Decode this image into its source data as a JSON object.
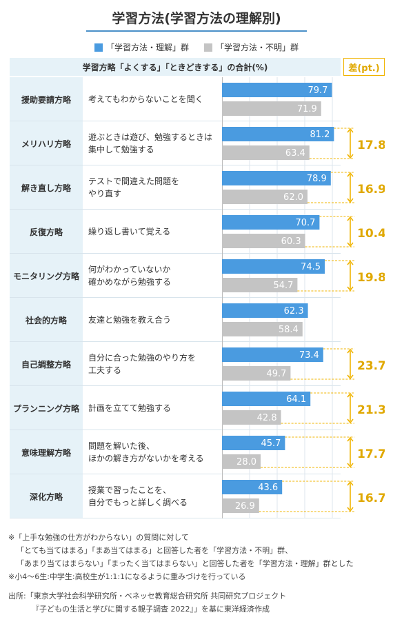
{
  "chart_data": {
    "type": "bar",
    "title": "学習方法(学習方法の理解別)",
    "subtitle": "学習方略「よくする」「ときどきする」の合計(%)",
    "diff_header": "差(pt.)",
    "series": [
      {
        "name": "「学習方法・理解」群",
        "color": "#4a9be0",
        "values": [
          79.7,
          81.2,
          78.9,
          70.7,
          74.5,
          62.3,
          73.4,
          64.1,
          45.7,
          43.6
        ]
      },
      {
        "name": "「学習方法・不明」群",
        "color": "#c4c4c4",
        "values": [
          71.9,
          63.4,
          62.0,
          60.3,
          54.7,
          58.4,
          49.7,
          42.8,
          28.0,
          26.9
        ]
      }
    ],
    "categories": [
      "援助要請方略",
      "メリハリ方略",
      "解き直し方略",
      "反復方略",
      "モニタリング方略",
      "社会的方略",
      "自己調整方略",
      "プランニング方略",
      "意味理解方略",
      "深化方略"
    ],
    "descriptions": [
      [
        "考えてもわからないことを聞く"
      ],
      [
        "遊ぶときは遊び、勉強するときは",
        "集中して勉強する"
      ],
      [
        "テストで間違えた問題を",
        "やり直す"
      ],
      [
        "繰り返し書いて覚える"
      ],
      [
        "何がわかっていないか",
        "確かめながら勉強する"
      ],
      [
        "友達と勉強を教え合う"
      ],
      [
        "自分に合った勉強のやり方を",
        "工夫する"
      ],
      [
        "計画を立てて勉強する"
      ],
      [
        "問題を解いた後、",
        "ほかの解き方がないかを考える"
      ],
      [
        "授業で習ったことを、",
        "自分でもっと詳しく調べる"
      ]
    ],
    "differences": [
      null,
      17.8,
      16.9,
      10.4,
      19.8,
      null,
      23.7,
      21.3,
      17.7,
      16.7
    ],
    "xlim": [
      0,
      100
    ],
    "accent_color": "#f0b400"
  },
  "notes": [
    "※「上手な勉強の仕方がわからない」の質問に対して",
    "「とても当てはまる」「まあ当てはまる」と回答した者を「学習方法・不明」群、",
    "「あまり当てはまらない」「まったく当てはまらない」と回答した者を「学習方法・理解」群とした",
    "※小4〜6生:中学生:高校生が1:1:1になるように重みづけを行っている"
  ],
  "source": [
    "出所:「東京大学社会科学研究所・ベネッセ教育総合研究所 共同研究プロジェクト",
    "『子どもの生活と学びに関する親子調査 2022』」を基に東洋経済作成"
  ]
}
